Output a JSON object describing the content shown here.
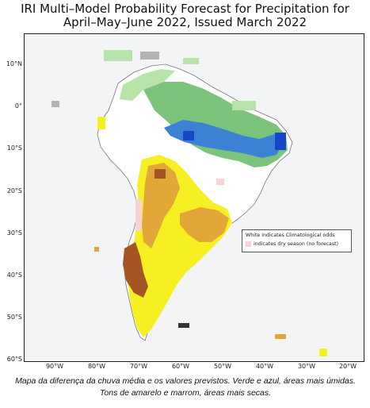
{
  "title_line1": "IRI Multi–Model Probability Forecast for Precipitation for",
  "title_line2": "April–May–June 2022, Issued March 2022",
  "lat_labels": [
    "10°N",
    "0°",
    "10°S",
    "20°S",
    "30°S",
    "40°S",
    "50°S",
    "60°S"
  ],
  "lon_labels": [
    "90°W",
    "80°W",
    "70°W",
    "60°W",
    "50°W",
    "40°W",
    "30°W",
    "20°W"
  ],
  "legend": {
    "line1": "White indicates Climatological odds",
    "line2": "indicates dry season (no forecast)"
  },
  "colors": {
    "ocean": "#f2f4f6",
    "climatology_white": "#ffffff",
    "wet_light_green": "#b5e3a8",
    "wet_green": "#7cc47c",
    "wet_blue": "#3b82d4",
    "wet_dark_blue": "#1746c7",
    "dry_yellow": "#f6ef22",
    "dry_orange": "#e3a638",
    "dry_brown": "#a45523",
    "dry_season_pink": "#f7d2d6",
    "no_data_gray": "#b4b4b4"
  },
  "caption": "Mapa da diferença da chuva média e os valores previstos. Verde e azul, áreas mais úmidas. Tons de amarelo e marrom, áreas mais secas."
}
